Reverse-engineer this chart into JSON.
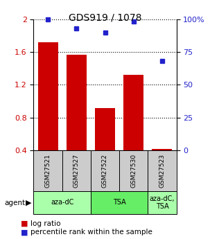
{
  "title": "GDS919 / 1078",
  "samples": [
    "GSM27521",
    "GSM27527",
    "GSM27522",
    "GSM27530",
    "GSM27523"
  ],
  "bar_values": [
    1.72,
    1.57,
    0.92,
    1.32,
    0.42
  ],
  "percentile_values": [
    100,
    93,
    90,
    98,
    68
  ],
  "bar_color": "#cc0000",
  "dot_color": "#2222cc",
  "ylim_left": [
    0.4,
    2.0
  ],
  "ylim_right": [
    0,
    100
  ],
  "yticks_left": [
    0.4,
    0.8,
    1.2,
    1.6,
    2.0
  ],
  "ytick_labels_left": [
    "0.4",
    "0.8",
    "1.2",
    "1.6",
    "2"
  ],
  "yticks_right": [
    0,
    25,
    50,
    75,
    100
  ],
  "ytick_labels_right": [
    "0",
    "25",
    "50",
    "75",
    "100%"
  ],
  "agent_labels": [
    "aza-dC",
    "TSA",
    "aza-dC,\nTSA"
  ],
  "agent_groups": [
    [
      0,
      1
    ],
    [
      2,
      3
    ],
    [
      4
    ]
  ],
  "agent_colors": [
    "#aaffaa",
    "#66ee66",
    "#aaffaa"
  ],
  "bar_width": 0.7,
  "background_color": "#ffffff",
  "plot_bg": "#ffffff",
  "sample_box_color": "#cccccc",
  "legend_red_label": "log ratio",
  "legend_blue_label": "percentile rank within the sample"
}
